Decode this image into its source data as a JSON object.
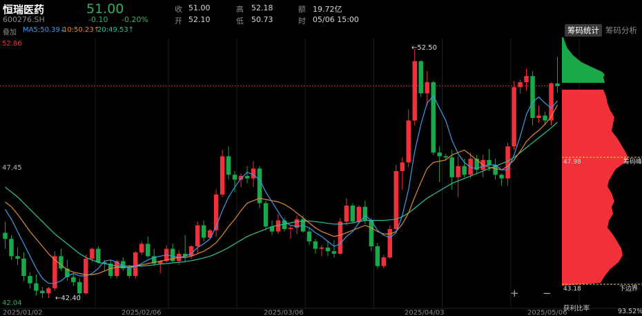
{
  "header": {
    "name": "恒瑞医药",
    "code": "600276.SH",
    "price": "51.00",
    "change": "-0.10",
    "change_pct": "-0.20%",
    "quote": [
      {
        "label": "收",
        "value": "51.00"
      },
      {
        "label": "高",
        "value": "52.18"
      },
      {
        "label": "额",
        "value": "19.72亿"
      },
      {
        "label": "开",
        "value": "52.10"
      },
      {
        "label": "低",
        "value": "50.73"
      },
      {
        "label": "时",
        "value": "05/06 15:00"
      }
    ]
  },
  "indicators": {
    "overlay_label": "叠加",
    "ma5": "MA5:50.39↓",
    "ma10": "10:50.23↑",
    "ma20": "20:49.53↑"
  },
  "tabs": [
    "筹码统计",
    "筹码分析"
  ],
  "zoom": {
    "plus": "+",
    "minus": "−"
  },
  "chip": {
    "peak_value": "47.98",
    "peak_label": "筹码峰",
    "lower_value": "43.18",
    "lower_label": "下边界",
    "profit_label": "获利比率",
    "profit_value": "93.52%"
  },
  "colors": {
    "up": "#f2303a",
    "down": "#1aa84a",
    "ma5": "#3a9ee6",
    "ma10": "#e08a30",
    "ma20": "#2ec2a0",
    "chip_profit": "#f2303a",
    "chip_loss": "#1aa84a"
  },
  "chart_data": {
    "type": "candlestick",
    "ylim": [
      42.04,
      52.86
    ],
    "ytick_labels": [
      "52.86",
      "47.45",
      "42.04"
    ],
    "xtick_labels": [
      "2025/01/02",
      "2025/02/06",
      "2025/03/06",
      "2025/04/03",
      "2025/05/06"
    ],
    "annotations": [
      {
        "text": "←52.50",
        "value": 52.5
      },
      {
        "text": "←42.40",
        "value": 42.4
      }
    ],
    "reference_price": 51.0,
    "candles": [
      [
        45.05,
        45.5,
        44.4,
        44.8
      ],
      [
        44.8,
        44.95,
        43.95,
        44.1
      ],
      [
        44.1,
        44.45,
        43.75,
        44.0
      ],
      [
        44.0,
        44.25,
        43.1,
        43.3
      ],
      [
        43.3,
        43.45,
        42.8,
        43.0
      ],
      [
        43.0,
        43.35,
        42.5,
        42.7
      ],
      [
        42.7,
        42.85,
        42.4,
        42.6
      ],
      [
        42.6,
        42.85,
        42.4,
        42.8
      ],
      [
        42.8,
        44.3,
        42.7,
        44.1
      ],
      [
        44.1,
        44.4,
        43.5,
        43.6
      ],
      [
        43.6,
        43.95,
        43.1,
        43.25
      ],
      [
        43.25,
        43.4,
        42.9,
        43.05
      ],
      [
        43.05,
        43.2,
        42.4,
        42.6
      ],
      [
        42.6,
        44.15,
        42.55,
        44.0
      ],
      [
        44.0,
        44.45,
        43.85,
        44.4
      ],
      [
        44.4,
        44.5,
        43.8,
        43.85
      ],
      [
        43.85,
        43.95,
        43.5,
        43.8
      ],
      [
        43.8,
        43.95,
        43.2,
        43.3
      ],
      [
        43.3,
        43.95,
        43.2,
        43.9
      ],
      [
        43.9,
        44.05,
        43.5,
        43.6
      ],
      [
        43.6,
        43.75,
        43.2,
        43.3
      ],
      [
        43.3,
        44.3,
        43.2,
        44.25
      ],
      [
        44.25,
        44.7,
        44.15,
        44.6
      ],
      [
        44.6,
        44.9,
        44.05,
        44.1
      ],
      [
        44.1,
        44.4,
        43.7,
        43.8
      ],
      [
        43.8,
        43.95,
        43.4,
        43.9
      ],
      [
        43.9,
        44.55,
        43.85,
        44.4
      ],
      [
        44.4,
        44.6,
        43.85,
        43.9
      ],
      [
        43.9,
        44.35,
        43.75,
        44.2
      ],
      [
        44.2,
        44.95,
        43.85,
        44.1
      ],
      [
        44.1,
        44.55,
        44.0,
        44.5
      ],
      [
        44.5,
        45.5,
        44.2,
        45.35
      ],
      [
        45.35,
        45.55,
        44.7,
        44.85
      ],
      [
        44.85,
        45.2,
        44.8,
        45.15
      ],
      [
        45.15,
        46.8,
        44.9,
        46.6
      ],
      [
        46.6,
        48.4,
        46.5,
        48.15
      ],
      [
        48.15,
        48.55,
        47.2,
        47.4
      ],
      [
        47.4,
        47.55,
        46.7,
        47.2
      ],
      [
        47.2,
        47.45,
        46.9,
        47.35
      ],
      [
        47.35,
        47.75,
        47.05,
        47.25
      ],
      [
        47.25,
        47.95,
        46.9,
        47.65
      ],
      [
        47.65,
        47.75,
        46.05,
        46.25
      ],
      [
        46.25,
        46.35,
        45.15,
        45.3
      ],
      [
        45.3,
        45.55,
        44.95,
        45.1
      ],
      [
        45.1,
        45.8,
        45.0,
        45.55
      ],
      [
        45.55,
        45.65,
        45.1,
        45.2
      ],
      [
        45.2,
        45.35,
        44.8,
        45.25
      ],
      [
        45.25,
        45.75,
        45.0,
        45.6
      ],
      [
        45.6,
        45.75,
        45.05,
        45.1
      ],
      [
        45.1,
        45.25,
        44.55,
        44.7
      ],
      [
        44.7,
        44.8,
        44.2,
        44.4
      ],
      [
        44.4,
        44.55,
        44.1,
        44.45
      ],
      [
        44.45,
        44.7,
        44.1,
        44.3
      ],
      [
        44.3,
        44.75,
        44.05,
        44.2
      ],
      [
        44.2,
        45.65,
        44.15,
        45.5
      ],
      [
        45.5,
        46.45,
        45.35,
        46.15
      ],
      [
        46.15,
        46.25,
        45.45,
        45.5
      ],
      [
        45.5,
        46.15,
        45.4,
        46.1
      ],
      [
        46.1,
        46.35,
        45.4,
        45.55
      ],
      [
        45.55,
        45.65,
        44.3,
        44.5
      ],
      [
        44.5,
        44.65,
        43.6,
        43.7
      ],
      [
        43.7,
        44.15,
        43.6,
        44.05
      ],
      [
        44.05,
        45.35,
        44.0,
        45.2
      ],
      [
        45.2,
        47.8,
        45.1,
        47.55
      ],
      [
        47.55,
        48.1,
        46.8,
        47.9
      ],
      [
        47.9,
        50.05,
        47.7,
        49.6
      ],
      [
        49.6,
        52.5,
        49.4,
        52.0
      ],
      [
        52.0,
        52.05,
        50.55,
        50.7
      ],
      [
        50.7,
        51.6,
        50.2,
        51.15
      ],
      [
        51.15,
        51.2,
        48.2,
        48.3
      ],
      [
        48.3,
        48.55,
        47.1,
        48.15
      ],
      [
        48.15,
        48.25,
        48.0,
        48.1
      ],
      [
        48.1,
        48.4,
        46.8,
        47.3
      ],
      [
        47.3,
        48.15,
        46.5,
        47.75
      ],
      [
        47.75,
        48.05,
        47.3,
        47.4
      ],
      [
        47.4,
        48.3,
        47.25,
        48.05
      ],
      [
        48.05,
        48.2,
        47.4,
        47.6
      ],
      [
        47.6,
        48.2,
        47.3,
        48.0
      ],
      [
        48.0,
        48.45,
        47.55,
        47.8
      ],
      [
        47.8,
        48.05,
        47.2,
        47.4
      ],
      [
        47.4,
        47.45,
        46.95,
        47.25
      ],
      [
        47.25,
        48.7,
        46.95,
        48.55
      ],
      [
        48.55,
        51.2,
        48.4,
        50.95
      ],
      [
        50.95,
        51.25,
        50.7,
        51.15
      ],
      [
        51.15,
        51.7,
        50.8,
        51.4
      ],
      [
        51.4,
        51.6,
        49.4,
        49.7
      ],
      [
        49.7,
        50.2,
        49.5,
        49.8
      ],
      [
        49.8,
        49.95,
        49.4,
        49.6
      ],
      [
        49.6,
        51.15,
        49.4,
        51.1
      ],
      [
        51.1,
        52.18,
        50.73,
        51.0
      ]
    ],
    "ma5": [
      46.0,
      45.6,
      45.1,
      44.6,
      44.1,
      43.6,
      43.2,
      43.0,
      43.0,
      43.1,
      43.3,
      43.4,
      43.3,
      43.3,
      43.4,
      43.6,
      43.9,
      43.95,
      43.85,
      43.7,
      43.6,
      43.7,
      43.8,
      43.95,
      44.05,
      44.1,
      44.15,
      44.1,
      44.05,
      44.1,
      44.2,
      44.45,
      44.6,
      44.8,
      45.3,
      45.95,
      46.5,
      46.9,
      47.25,
      47.5,
      47.4,
      47.2,
      46.7,
      46.3,
      45.9,
      45.5,
      45.35,
      45.3,
      45.35,
      45.25,
      45.05,
      44.9,
      44.7,
      44.5,
      44.6,
      44.9,
      45.1,
      45.45,
      45.75,
      45.55,
      45.15,
      44.95,
      44.85,
      45.05,
      45.75,
      46.8,
      48.35,
      49.45,
      50.3,
      50.6,
      50.1,
      49.6,
      48.8,
      48.25,
      47.9,
      47.7,
      47.65,
      47.75,
      47.8,
      47.8,
      47.6,
      47.6,
      48.2,
      48.95,
      49.85,
      50.35,
      50.55,
      50.3,
      50.1,
      50.39
    ],
    "ma10": [
      46.3,
      46.1,
      45.8,
      45.45,
      45.1,
      44.8,
      44.5,
      44.2,
      43.95,
      43.75,
      43.55,
      43.45,
      43.4,
      43.35,
      43.35,
      43.4,
      43.5,
      43.6,
      43.65,
      43.65,
      43.65,
      43.7,
      43.75,
      43.8,
      43.85,
      43.9,
      43.95,
      44.0,
      44.05,
      44.05,
      44.1,
      44.2,
      44.3,
      44.45,
      44.65,
      44.95,
      45.3,
      45.6,
      45.95,
      46.25,
      46.35,
      46.45,
      46.4,
      46.35,
      46.3,
      46.2,
      46.05,
      45.85,
      45.65,
      45.45,
      45.25,
      45.1,
      45.0,
      44.9,
      44.95,
      45.05,
      45.15,
      45.25,
      45.35,
      45.25,
      45.1,
      45.0,
      45.0,
      45.1,
      45.4,
      45.85,
      46.5,
      47.1,
      47.65,
      47.9,
      47.95,
      48.0,
      48.2,
      48.3,
      48.4,
      48.2,
      48.0,
      47.8,
      47.7,
      47.65,
      47.6,
      47.75,
      48.0,
      48.35,
      48.75,
      49.0,
      49.2,
      49.45,
      49.75,
      50.23
    ],
    "ma20": [
      46.9,
      46.7,
      46.5,
      46.25,
      46.0,
      45.75,
      45.5,
      45.25,
      45.0,
      44.8,
      44.6,
      44.4,
      44.2,
      44.05,
      43.95,
      43.85,
      43.8,
      43.75,
      43.7,
      43.7,
      43.7,
      43.7,
      43.7,
      43.72,
      43.75,
      43.78,
      43.8,
      43.83,
      43.85,
      43.88,
      43.92,
      43.97,
      44.03,
      44.1,
      44.2,
      44.32,
      44.45,
      44.6,
      44.75,
      44.9,
      45.0,
      45.1,
      45.2,
      45.3,
      45.35,
      45.4,
      45.45,
      45.5,
      45.52,
      45.53,
      45.5,
      45.47,
      45.43,
      45.4,
      45.4,
      45.42,
      45.45,
      45.5,
      45.55,
      45.55,
      45.55,
      45.55,
      45.57,
      45.6,
      45.7,
      45.85,
      46.05,
      46.25,
      46.45,
      46.6,
      46.75,
      46.9,
      47.05,
      47.15,
      47.25,
      47.35,
      47.45,
      47.55,
      47.65,
      47.75,
      47.85,
      47.95,
      48.1,
      48.3,
      48.5,
      48.7,
      48.9,
      49.1,
      49.3,
      49.53
    ]
  }
}
